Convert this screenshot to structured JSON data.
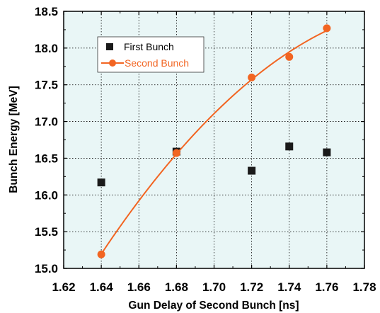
{
  "chart_data": {
    "type": "scatter",
    "xlabel": "Gun Delay of Second Bunch [ns]",
    "ylabel": "Bunch Energy [MeV]",
    "xlim": [
      1.62,
      1.78
    ],
    "ylim": [
      15.0,
      18.5
    ],
    "x_ticks": [
      "1.62",
      "1.64",
      "1.66",
      "1.68",
      "1.70",
      "1.72",
      "1.74",
      "1.76",
      "1.78"
    ],
    "y_ticks": [
      "15.0",
      "15.5",
      "16.0",
      "16.5",
      "17.0",
      "17.5",
      "18.0",
      "18.5"
    ],
    "grid": true,
    "plot_background": "#e9f6f6",
    "legend_position": "top-left",
    "series": [
      {
        "name": "First Bunch",
        "marker": "square",
        "color": "#1a1a1a",
        "x": [
          1.64,
          1.68,
          1.72,
          1.74,
          1.76
        ],
        "y": [
          16.17,
          16.59,
          16.33,
          16.66,
          16.58
        ]
      },
      {
        "name": "Second Bunch",
        "marker": "circle",
        "line": "fit-curve",
        "color": "#f26522",
        "x": [
          1.64,
          1.68,
          1.72,
          1.74,
          1.76
        ],
        "y": [
          15.19,
          16.57,
          17.6,
          17.88,
          18.27
        ]
      }
    ]
  }
}
